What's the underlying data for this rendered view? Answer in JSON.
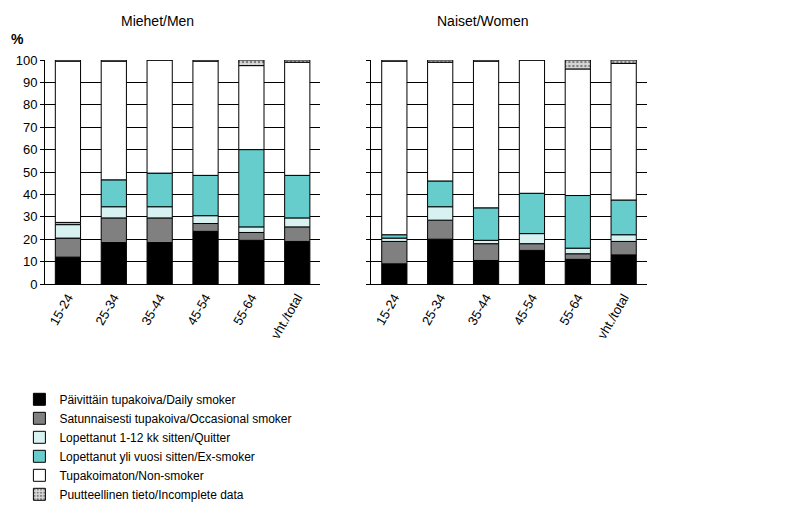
{
  "chart_data": [
    {
      "type": "bar",
      "stacked": true,
      "title": "Miehet/Men",
      "ylabel": "%",
      "categories": [
        "15-24",
        "25-34",
        "35-44",
        "45-54",
        "55-64",
        "vht./total"
      ],
      "ylim": [
        0,
        100
      ],
      "yticks": [
        0,
        10,
        20,
        30,
        40,
        50,
        60,
        70,
        80,
        90,
        100
      ],
      "grid": true,
      "legend": "bottom",
      "series": [
        {
          "name": "Päivittäin tupakoiva/Daily smoker",
          "color": "#000000",
          "values": [
            12,
            18.5,
            18.5,
            23.5,
            19.5,
            19
          ]
        },
        {
          "name": "Satunnaisesti tupakoiva/Occasional smoker",
          "color": "#808080",
          "values": [
            8.5,
            11,
            11,
            3.5,
            3.5,
            6.5
          ]
        },
        {
          "name": "Lopettanut 1-12 kk sitten/Quitter",
          "color": "#d8f1f1",
          "values": [
            6,
            5,
            5,
            3.5,
            2.5,
            4
          ]
        },
        {
          "name": "Lopettanut yli vuosi sitten/Ex-smoker",
          "color": "#66cccc",
          "values": [
            1,
            12,
            15,
            18,
            34.5,
            19
          ]
        },
        {
          "name": "Tupakoimaton/Non-smoker",
          "color": "#ffffff",
          "values": [
            72,
            53,
            50.5,
            51,
            37.5,
            50.5
          ]
        },
        {
          "name": "Puutteellinen tieto/Incomplete data",
          "color": "#d9d9d9",
          "marker": "dotted",
          "values": [
            0.5,
            0.5,
            0,
            0.5,
            2.5,
            1
          ]
        }
      ]
    },
    {
      "type": "bar",
      "stacked": true,
      "title": "Naiset/Women",
      "tick_labels": "x",
      "categories": [
        "15-24",
        "25-34",
        "35-44",
        "45-54",
        "55-64",
        "vht./total"
      ],
      "ylim": [
        0,
        100
      ],
      "yticks": [
        0,
        10,
        20,
        30,
        40,
        50,
        60,
        70,
        80,
        90,
        100
      ],
      "grid": true,
      "series": [
        {
          "name": "Päivittäin tupakoiva/Daily smoker",
          "color": "#000000",
          "values": [
            9,
            20,
            10.5,
            15,
            11,
            13
          ]
        },
        {
          "name": "Satunnaisesti tupakoiva/Occasional smoker",
          "color": "#808080",
          "values": [
            10,
            8.5,
            7.5,
            3,
            2.5,
            6
          ]
        },
        {
          "name": "Lopettanut 1-12 kk sitten/Quitter",
          "color": "#d8f1f1",
          "values": [
            1.5,
            6,
            1.5,
            4.5,
            2.5,
            3
          ]
        },
        {
          "name": "Lopettanut yli vuosi sitten/Ex-smoker",
          "color": "#66cccc",
          "values": [
            1.5,
            11.5,
            14.5,
            18,
            23.5,
            15.5
          ]
        },
        {
          "name": "Tupakoimaton/Non-smoker",
          "color": "#ffffff",
          "values": [
            77.5,
            53,
            65.5,
            59.5,
            56.5,
            61
          ]
        },
        {
          "name": "Puutteellinen tieto/Incomplete data",
          "color": "#d9d9d9",
          "marker": "dotted",
          "values": [
            0.5,
            1,
            0.5,
            0,
            4,
            1.5
          ]
        }
      ]
    }
  ]
}
